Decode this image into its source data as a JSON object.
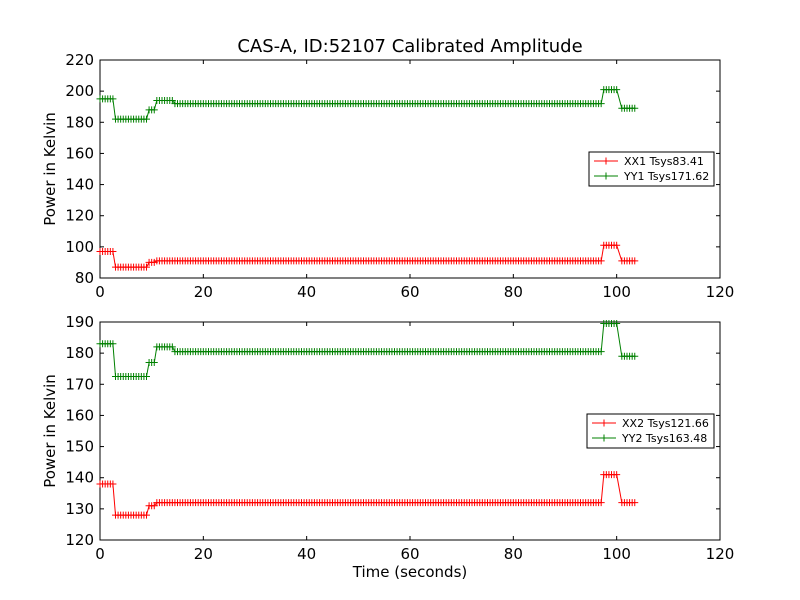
{
  "chart_data": [
    {
      "type": "line",
      "title": "CAS-A, ID:52107 Calibrated Amplitude",
      "xlabel": "",
      "ylabel": "Power in Kelvin",
      "xlim": [
        0,
        120
      ],
      "ylim": [
        80,
        220
      ],
      "xticks": [
        0,
        20,
        40,
        60,
        80,
        100,
        120
      ],
      "yticks": [
        80,
        100,
        120,
        140,
        160,
        180,
        200,
        220
      ],
      "grid": false,
      "legend_position": "right",
      "series": [
        {
          "name": "XX1 Tsys83.41",
          "color": "#ff0000",
          "segments": [
            {
              "x0": 0,
              "x1": 2.5,
              "y": 97
            },
            {
              "x0": 3,
              "x1": 9,
              "y": 87
            },
            {
              "x0": 9.5,
              "x1": 10.5,
              "y": 90
            },
            {
              "x0": 11,
              "x1": 97,
              "y": 91
            },
            {
              "x0": 97.5,
              "x1": 100,
              "y": 101
            },
            {
              "x0": 101,
              "x1": 103.5,
              "y": 91
            }
          ]
        },
        {
          "name": "YY1 Tsys171.62",
          "color": "#008000",
          "segments": [
            {
              "x0": 0,
              "x1": 2.5,
              "y": 195
            },
            {
              "x0": 3,
              "x1": 9,
              "y": 182
            },
            {
              "x0": 9.5,
              "x1": 10.5,
              "y": 188
            },
            {
              "x0": 11,
              "x1": 14,
              "y": 194
            },
            {
              "x0": 14.5,
              "x1": 97,
              "y": 192
            },
            {
              "x0": 97.5,
              "x1": 100,
              "y": 201
            },
            {
              "x0": 101,
              "x1": 103.5,
              "y": 189
            }
          ]
        }
      ]
    },
    {
      "type": "line",
      "title": "",
      "xlabel": "Time (seconds)",
      "ylabel": "Power in Kelvin",
      "xlim": [
        0,
        120
      ],
      "ylim": [
        120,
        190
      ],
      "xticks": [
        0,
        20,
        40,
        60,
        80,
        100,
        120
      ],
      "yticks": [
        120,
        130,
        140,
        150,
        160,
        170,
        180,
        190
      ],
      "grid": false,
      "legend_position": "right",
      "series": [
        {
          "name": "XX2 Tsys121.66",
          "color": "#ff0000",
          "segments": [
            {
              "x0": 0,
              "x1": 2.5,
              "y": 138
            },
            {
              "x0": 3,
              "x1": 9,
              "y": 128
            },
            {
              "x0": 9.5,
              "x1": 10.5,
              "y": 131
            },
            {
              "x0": 11,
              "x1": 97,
              "y": 132
            },
            {
              "x0": 97.5,
              "x1": 100,
              "y": 141
            },
            {
              "x0": 101,
              "x1": 103.5,
              "y": 132
            }
          ]
        },
        {
          "name": "YY2 Tsys163.48",
          "color": "#008000",
          "segments": [
            {
              "x0": 0,
              "x1": 2.5,
              "y": 183
            },
            {
              "x0": 3,
              "x1": 9,
              "y": 172.5
            },
            {
              "x0": 9.5,
              "x1": 10.5,
              "y": 177
            },
            {
              "x0": 11,
              "x1": 14,
              "y": 182
            },
            {
              "x0": 14.5,
              "x1": 97,
              "y": 180.5
            },
            {
              "x0": 97.5,
              "x1": 100,
              "y": 189.5
            },
            {
              "x0": 101,
              "x1": 103.5,
              "y": 179
            }
          ]
        }
      ]
    }
  ]
}
